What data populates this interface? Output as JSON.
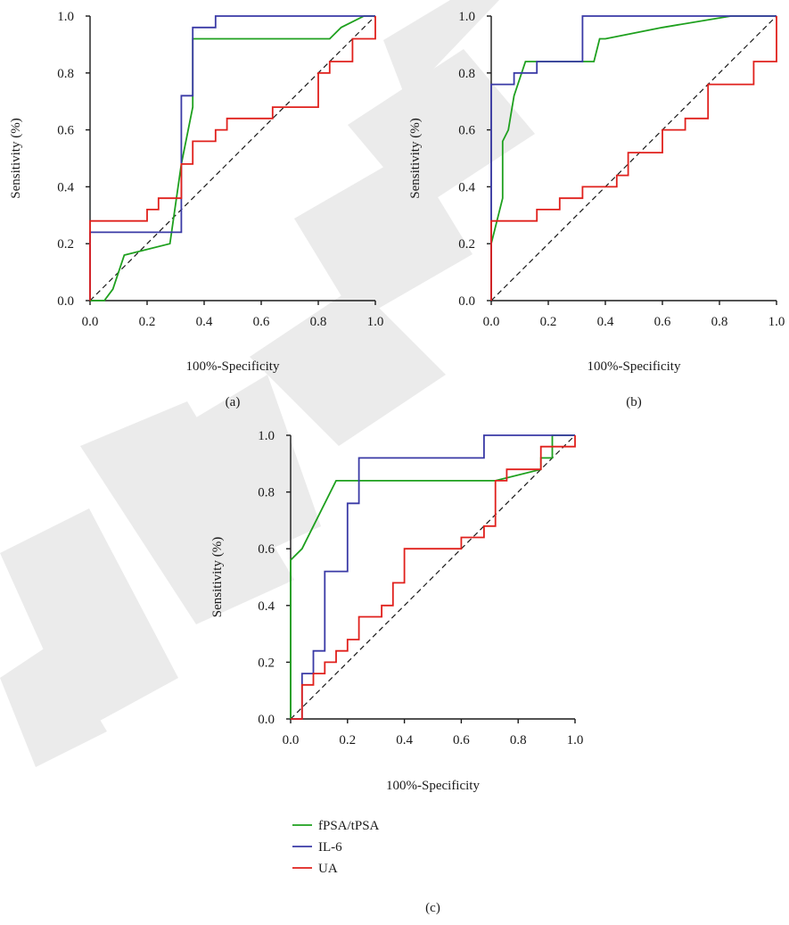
{
  "series_legend": [
    {
      "name": "fPSA/tPSA",
      "color": "#1ea01e"
    },
    {
      "name": "IL-6",
      "color": "#3a3aa6"
    },
    {
      "name": "UA",
      "color": "#e0201c"
    }
  ],
  "watermark_text": "RETRACTED",
  "chart_data": [
    {
      "type": "line",
      "panel_label": "(a)",
      "xlabel": "100%-Specificity",
      "ylabel": "Sensitivity (%)",
      "xlim": [
        0,
        1
      ],
      "ylim": [
        0,
        1
      ],
      "ticks": [
        "0.0",
        "0.2",
        "0.4",
        "0.6",
        "0.8",
        "1.0"
      ],
      "diagonal_reference": true,
      "series": [
        {
          "name": "fPSA/tPSA",
          "points": [
            [
              0,
              0
            ],
            [
              0.05,
              0
            ],
            [
              0.08,
              0.04
            ],
            [
              0.12,
              0.16
            ],
            [
              0.28,
              0.2
            ],
            [
              0.32,
              0.48
            ],
            [
              0.36,
              0.68
            ],
            [
              0.36,
              0.92
            ],
            [
              0.84,
              0.92
            ],
            [
              0.88,
              0.96
            ],
            [
              0.96,
              1
            ],
            [
              1,
              1
            ]
          ]
        },
        {
          "name": "IL-6",
          "points": [
            [
              0,
              0
            ],
            [
              0,
              0.24
            ],
            [
              0.32,
              0.24
            ],
            [
              0.32,
              0.72
            ],
            [
              0.36,
              0.72
            ],
            [
              0.36,
              0.96
            ],
            [
              0.44,
              0.96
            ],
            [
              0.44,
              1
            ],
            [
              1,
              1
            ]
          ]
        },
        {
          "name": "UA",
          "points": [
            [
              0,
              0
            ],
            [
              0,
              0.28
            ],
            [
              0.2,
              0.28
            ],
            [
              0.2,
              0.32
            ],
            [
              0.24,
              0.32
            ],
            [
              0.24,
              0.36
            ],
            [
              0.32,
              0.36
            ],
            [
              0.32,
              0.48
            ],
            [
              0.36,
              0.48
            ],
            [
              0.36,
              0.56
            ],
            [
              0.44,
              0.56
            ],
            [
              0.44,
              0.6
            ],
            [
              0.48,
              0.6
            ],
            [
              0.48,
              0.64
            ],
            [
              0.64,
              0.64
            ],
            [
              0.64,
              0.68
            ],
            [
              0.8,
              0.68
            ],
            [
              0.8,
              0.8
            ],
            [
              0.84,
              0.8
            ],
            [
              0.84,
              0.84
            ],
            [
              0.92,
              0.84
            ],
            [
              0.92,
              0.92
            ],
            [
              1,
              0.92
            ],
            [
              1,
              1
            ]
          ]
        }
      ]
    },
    {
      "type": "line",
      "panel_label": "(b)",
      "xlabel": "100%-Specificity",
      "ylabel": "Sensitivity (%)",
      "xlim": [
        0,
        1
      ],
      "ylim": [
        0,
        1
      ],
      "ticks": [
        "0.0",
        "0.2",
        "0.4",
        "0.6",
        "0.8",
        "1.0"
      ],
      "diagonal_reference": true,
      "series": [
        {
          "name": "fPSA/tPSA",
          "points": [
            [
              0,
              0
            ],
            [
              0,
              0.2
            ],
            [
              0.02,
              0.28
            ],
            [
              0.04,
              0.36
            ],
            [
              0.04,
              0.56
            ],
            [
              0.06,
              0.6
            ],
            [
              0.08,
              0.72
            ],
            [
              0.12,
              0.84
            ],
            [
              0.36,
              0.84
            ],
            [
              0.38,
              0.92
            ],
            [
              0.4,
              0.92
            ],
            [
              0.6,
              0.96
            ],
            [
              0.84,
              1
            ],
            [
              1,
              1
            ]
          ]
        },
        {
          "name": "IL-6",
          "points": [
            [
              0,
              0
            ],
            [
              0,
              0.76
            ],
            [
              0.08,
              0.76
            ],
            [
              0.08,
              0.8
            ],
            [
              0.16,
              0.8
            ],
            [
              0.16,
              0.84
            ],
            [
              0.32,
              0.84
            ],
            [
              0.32,
              1
            ],
            [
              1,
              1
            ]
          ]
        },
        {
          "name": "UA",
          "points": [
            [
              0,
              0
            ],
            [
              0,
              0.28
            ],
            [
              0.16,
              0.28
            ],
            [
              0.16,
              0.32
            ],
            [
              0.24,
              0.32
            ],
            [
              0.24,
              0.36
            ],
            [
              0.32,
              0.36
            ],
            [
              0.32,
              0.4
            ],
            [
              0.44,
              0.4
            ],
            [
              0.44,
              0.44
            ],
            [
              0.48,
              0.44
            ],
            [
              0.48,
              0.52
            ],
            [
              0.6,
              0.52
            ],
            [
              0.6,
              0.6
            ],
            [
              0.68,
              0.6
            ],
            [
              0.68,
              0.64
            ],
            [
              0.76,
              0.64
            ],
            [
              0.76,
              0.76
            ],
            [
              0.92,
              0.76
            ],
            [
              0.92,
              0.84
            ],
            [
              1,
              0.84
            ],
            [
              1,
              1
            ]
          ]
        }
      ]
    },
    {
      "type": "line",
      "panel_label": "(c)",
      "xlabel": "100%-Specificity",
      "ylabel": "Sensitivity (%)",
      "xlim": [
        0,
        1
      ],
      "ylim": [
        0,
        1
      ],
      "ticks": [
        "0.0",
        "0.2",
        "0.4",
        "0.6",
        "0.8",
        "1.0"
      ],
      "diagonal_reference": true,
      "series": [
        {
          "name": "fPSA/tPSA",
          "points": [
            [
              0,
              0
            ],
            [
              0,
              0.56
            ],
            [
              0.04,
              0.6
            ],
            [
              0.16,
              0.84
            ],
            [
              0.72,
              0.84
            ],
            [
              0.72,
              0.84
            ],
            [
              0.88,
              0.88
            ],
            [
              0.88,
              0.92
            ],
            [
              0.92,
              0.92
            ],
            [
              0.92,
              1
            ],
            [
              1,
              1
            ]
          ]
        },
        {
          "name": "IL-6",
          "points": [
            [
              0,
              0
            ],
            [
              0.04,
              0
            ],
            [
              0.04,
              0.16
            ],
            [
              0.08,
              0.16
            ],
            [
              0.08,
              0.24
            ],
            [
              0.12,
              0.24
            ],
            [
              0.12,
              0.52
            ],
            [
              0.2,
              0.52
            ],
            [
              0.2,
              0.76
            ],
            [
              0.24,
              0.76
            ],
            [
              0.24,
              0.92
            ],
            [
              0.68,
              0.92
            ],
            [
              0.68,
              1
            ],
            [
              1,
              1
            ]
          ]
        },
        {
          "name": "UA",
          "points": [
            [
              0,
              0
            ],
            [
              0.04,
              0
            ],
            [
              0.04,
              0.12
            ],
            [
              0.08,
              0.12
            ],
            [
              0.08,
              0.16
            ],
            [
              0.12,
              0.16
            ],
            [
              0.12,
              0.2
            ],
            [
              0.16,
              0.2
            ],
            [
              0.16,
              0.24
            ],
            [
              0.2,
              0.24
            ],
            [
              0.2,
              0.28
            ],
            [
              0.24,
              0.28
            ],
            [
              0.24,
              0.36
            ],
            [
              0.32,
              0.36
            ],
            [
              0.32,
              0.4
            ],
            [
              0.36,
              0.4
            ],
            [
              0.36,
              0.48
            ],
            [
              0.4,
              0.48
            ],
            [
              0.4,
              0.6
            ],
            [
              0.6,
              0.6
            ],
            [
              0.6,
              0.64
            ],
            [
              0.68,
              0.64
            ],
            [
              0.68,
              0.68
            ],
            [
              0.72,
              0.68
            ],
            [
              0.72,
              0.84
            ],
            [
              0.76,
              0.84
            ],
            [
              0.76,
              0.88
            ],
            [
              0.88,
              0.88
            ],
            [
              0.88,
              0.96
            ],
            [
              1,
              0.96
            ],
            [
              1,
              1
            ]
          ]
        }
      ]
    }
  ]
}
